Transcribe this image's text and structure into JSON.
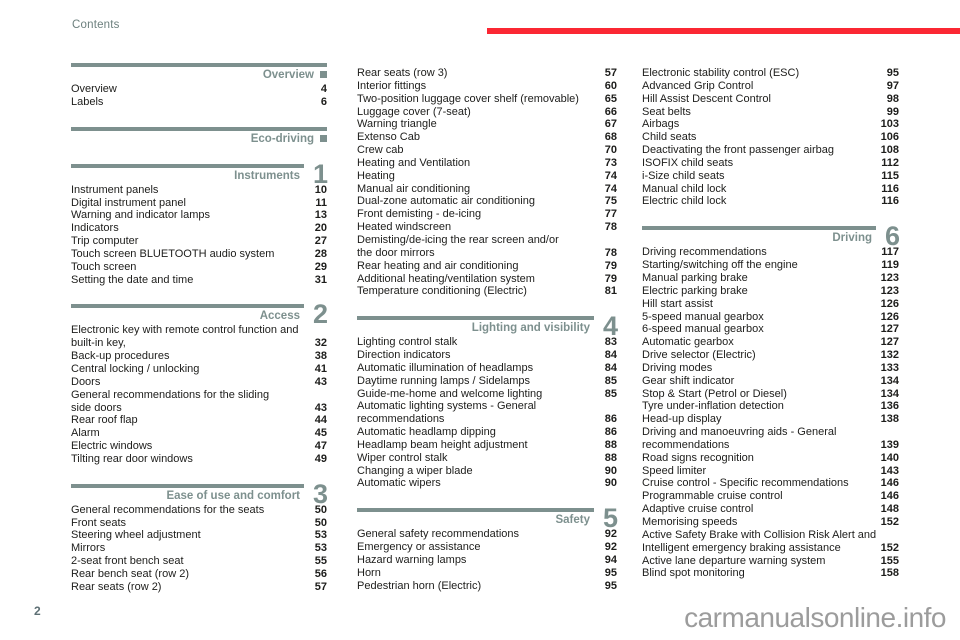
{
  "page": {
    "header_label": "Contents",
    "page_number": "2",
    "watermark": "carmanualsonline.info"
  },
  "colors": {
    "accent_red": "#fb2733",
    "section_green": "#7d908e",
    "text": "#1d1d1b",
    "muted_green": "#6d807e",
    "watermark_gray": "#9c9c9c"
  },
  "columns": [
    {
      "blocks": [
        {
          "type": "section",
          "title": "Overview",
          "marker": "square"
        },
        {
          "type": "items",
          "entries": [
            {
              "lines": [
                "Overview"
              ],
              "page": "4"
            },
            {
              "lines": [
                "Labels"
              ],
              "page": "6"
            }
          ]
        },
        {
          "type": "section",
          "title": "Eco-driving",
          "marker": "square"
        },
        {
          "type": "section",
          "title": "Instruments",
          "number": "1"
        },
        {
          "type": "items",
          "entries": [
            {
              "lines": [
                "Instrument panels"
              ],
              "page": "10"
            },
            {
              "lines": [
                "Digital instrument panel"
              ],
              "page": "11"
            },
            {
              "lines": [
                "Warning and indicator lamps"
              ],
              "page": "13"
            },
            {
              "lines": [
                "Indicators"
              ],
              "page": "20"
            },
            {
              "lines": [
                "Trip computer"
              ],
              "page": "27"
            },
            {
              "lines": [
                "Touch screen BLUETOOTH audio system"
              ],
              "page": "28"
            },
            {
              "lines": [
                "Touch screen"
              ],
              "page": "29"
            },
            {
              "lines": [
                "Setting the date and time"
              ],
              "page": "31"
            }
          ]
        },
        {
          "type": "section",
          "title": "Access",
          "number": "2"
        },
        {
          "type": "items",
          "entries": [
            {
              "lines": [
                "Electronic key with remote control function and",
                "built-in key,"
              ],
              "page": "32"
            },
            {
              "lines": [
                "Back-up procedures"
              ],
              "page": "38"
            },
            {
              "lines": [
                "Central locking / unlocking"
              ],
              "page": "41"
            },
            {
              "lines": [
                "Doors"
              ],
              "page": "43"
            },
            {
              "lines": [
                "General recommendations for the sliding",
                "side doors"
              ],
              "page": "43"
            },
            {
              "lines": [
                "Rear roof flap"
              ],
              "page": "44"
            },
            {
              "lines": [
                "Alarm"
              ],
              "page": "45"
            },
            {
              "lines": [
                "Electric windows"
              ],
              "page": "47"
            },
            {
              "lines": [
                "Tilting rear door windows"
              ],
              "page": "49"
            }
          ]
        },
        {
          "type": "section",
          "title": "Ease of use and comfort",
          "number": "3"
        },
        {
          "type": "items",
          "entries": [
            {
              "lines": [
                "General recommendations for the seats"
              ],
              "page": "50"
            },
            {
              "lines": [
                "Front seats"
              ],
              "page": "50"
            },
            {
              "lines": [
                "Steering wheel adjustment"
              ],
              "page": "53"
            },
            {
              "lines": [
                "Mirrors"
              ],
              "page": "53"
            },
            {
              "lines": [
                "2-seat front bench seat"
              ],
              "page": "55"
            },
            {
              "lines": [
                "Rear bench seat (row 2)"
              ],
              "page": "56"
            },
            {
              "lines": [
                "Rear seats (row 2)"
              ],
              "page": "57"
            }
          ]
        }
      ]
    },
    {
      "blocks": [
        {
          "type": "items",
          "entries": [
            {
              "lines": [
                "Rear seats (row 3)"
              ],
              "page": "57"
            },
            {
              "lines": [
                "Interior fittings"
              ],
              "page": "60"
            },
            {
              "lines": [
                "Two-position luggage cover shelf (removable)"
              ],
              "page": "65"
            },
            {
              "lines": [
                "Luggage cover (7-seat)"
              ],
              "page": "66"
            },
            {
              "lines": [
                "Warning triangle"
              ],
              "page": "67"
            },
            {
              "lines": [
                "Extenso Cab"
              ],
              "page": "68"
            },
            {
              "lines": [
                "Crew cab"
              ],
              "page": "70"
            },
            {
              "lines": [
                "Heating and Ventilation"
              ],
              "page": "73"
            },
            {
              "lines": [
                "Heating"
              ],
              "page": "74"
            },
            {
              "lines": [
                "Manual air conditioning"
              ],
              "page": "74"
            },
            {
              "lines": [
                "Dual-zone automatic air conditioning"
              ],
              "page": "75"
            },
            {
              "lines": [
                "Front demisting - de-icing"
              ],
              "page": "77"
            },
            {
              "lines": [
                "Heated windscreen"
              ],
              "page": "78"
            },
            {
              "lines": [
                "Demisting/de-icing the rear screen and/or",
                "the door mirrors"
              ],
              "page": "78"
            },
            {
              "lines": [
                "Rear heating and air conditioning"
              ],
              "page": "79"
            },
            {
              "lines": [
                "Additional heating/ventilation system"
              ],
              "page": "79"
            },
            {
              "lines": [
                "Temperature conditioning (Electric)"
              ],
              "page": "81"
            }
          ]
        },
        {
          "type": "section",
          "title": "Lighting and visibility",
          "number": "4"
        },
        {
          "type": "items",
          "entries": [
            {
              "lines": [
                "Lighting control stalk"
              ],
              "page": "83"
            },
            {
              "lines": [
                "Direction indicators"
              ],
              "page": "84"
            },
            {
              "lines": [
                "Automatic illumination of headlamps"
              ],
              "page": "84"
            },
            {
              "lines": [
                "Daytime running lamps / Sidelamps"
              ],
              "page": "85"
            },
            {
              "lines": [
                "Guide-me-home and welcome lighting"
              ],
              "page": "85"
            },
            {
              "lines": [
                "Automatic lighting systems - General",
                "recommendations"
              ],
              "page": "86"
            },
            {
              "lines": [
                "Automatic headlamp dipping"
              ],
              "page": "86"
            },
            {
              "lines": [
                "Headlamp beam height adjustment"
              ],
              "page": "88"
            },
            {
              "lines": [
                "Wiper control stalk"
              ],
              "page": "88"
            },
            {
              "lines": [
                "Changing a wiper blade"
              ],
              "page": "90"
            },
            {
              "lines": [
                "Automatic wipers"
              ],
              "page": "90"
            }
          ]
        },
        {
          "type": "section",
          "title": "Safety",
          "number": "5"
        },
        {
          "type": "items",
          "entries": [
            {
              "lines": [
                "General safety recommendations"
              ],
              "page": "92"
            },
            {
              "lines": [
                "Emergency or assistance"
              ],
              "page": "92"
            },
            {
              "lines": [
                "Hazard warning lamps"
              ],
              "page": "94"
            },
            {
              "lines": [
                "Horn"
              ],
              "page": "95"
            },
            {
              "lines": [
                "Pedestrian horn (Electric)"
              ],
              "page": "95"
            }
          ]
        }
      ]
    },
    {
      "blocks": [
        {
          "type": "items",
          "entries": [
            {
              "lines": [
                "Electronic stability control (ESC)"
              ],
              "page": "95"
            },
            {
              "lines": [
                "Advanced Grip Control"
              ],
              "page": "97"
            },
            {
              "lines": [
                "Hill Assist Descent Control"
              ],
              "page": "98"
            },
            {
              "lines": [
                "Seat belts"
              ],
              "page": "99"
            },
            {
              "lines": [
                "Airbags"
              ],
              "page": "103"
            },
            {
              "lines": [
                "Child seats"
              ],
              "page": "106"
            },
            {
              "lines": [
                "Deactivating the front passenger airbag"
              ],
              "page": "108"
            },
            {
              "lines": [
                "ISOFIX child seats"
              ],
              "page": "112"
            },
            {
              "lines": [
                "i-Size child seats"
              ],
              "page": "115"
            },
            {
              "lines": [
                "Manual child lock"
              ],
              "page": "116"
            },
            {
              "lines": [
                "Electric child lock"
              ],
              "page": "116"
            }
          ]
        },
        {
          "type": "section",
          "title": "Driving",
          "number": "6"
        },
        {
          "type": "items",
          "entries": [
            {
              "lines": [
                "Driving recommendations"
              ],
              "page": "117"
            },
            {
              "lines": [
                "Starting/switching off the engine"
              ],
              "page": "119"
            },
            {
              "lines": [
                "Manual parking brake"
              ],
              "page": "123"
            },
            {
              "lines": [
                "Electric parking brake"
              ],
              "page": "123"
            },
            {
              "lines": [
                "Hill start assist"
              ],
              "page": "126"
            },
            {
              "lines": [
                "5-speed manual gearbox"
              ],
              "page": "126"
            },
            {
              "lines": [
                "6-speed manual gearbox"
              ],
              "page": "127"
            },
            {
              "lines": [
                "Automatic gearbox"
              ],
              "page": "127"
            },
            {
              "lines": [
                "Drive selector (Electric)"
              ],
              "page": "132"
            },
            {
              "lines": [
                "Driving modes"
              ],
              "page": "133"
            },
            {
              "lines": [
                "Gear shift indicator"
              ],
              "page": "134"
            },
            {
              "lines": [
                "Stop & Start (Petrol or Diesel)"
              ],
              "page": "134"
            },
            {
              "lines": [
                "Tyre under-inflation detection"
              ],
              "page": "136"
            },
            {
              "lines": [
                "Head-up display"
              ],
              "page": "138"
            },
            {
              "lines": [
                "Driving and manoeuvring aids - General",
                "recommendations"
              ],
              "page": "139"
            },
            {
              "lines": [
                "Road signs recognition"
              ],
              "page": "140"
            },
            {
              "lines": [
                "Speed limiter"
              ],
              "page": "143"
            },
            {
              "lines": [
                "Cruise control - Specific recommendations"
              ],
              "page": "146"
            },
            {
              "lines": [
                "Programmable cruise control"
              ],
              "page": "146"
            },
            {
              "lines": [
                "Adaptive cruise control"
              ],
              "page": "148"
            },
            {
              "lines": [
                "Memorising speeds"
              ],
              "page": "152"
            },
            {
              "lines": [
                "Active Safety Brake with Collision Risk Alert and",
                "Intelligent emergency braking assistance"
              ],
              "page": "152"
            },
            {
              "lines": [
                "Active lane departure warning system"
              ],
              "page": "155"
            },
            {
              "lines": [
                "Blind spot monitoring"
              ],
              "page": "158"
            }
          ]
        }
      ]
    }
  ]
}
